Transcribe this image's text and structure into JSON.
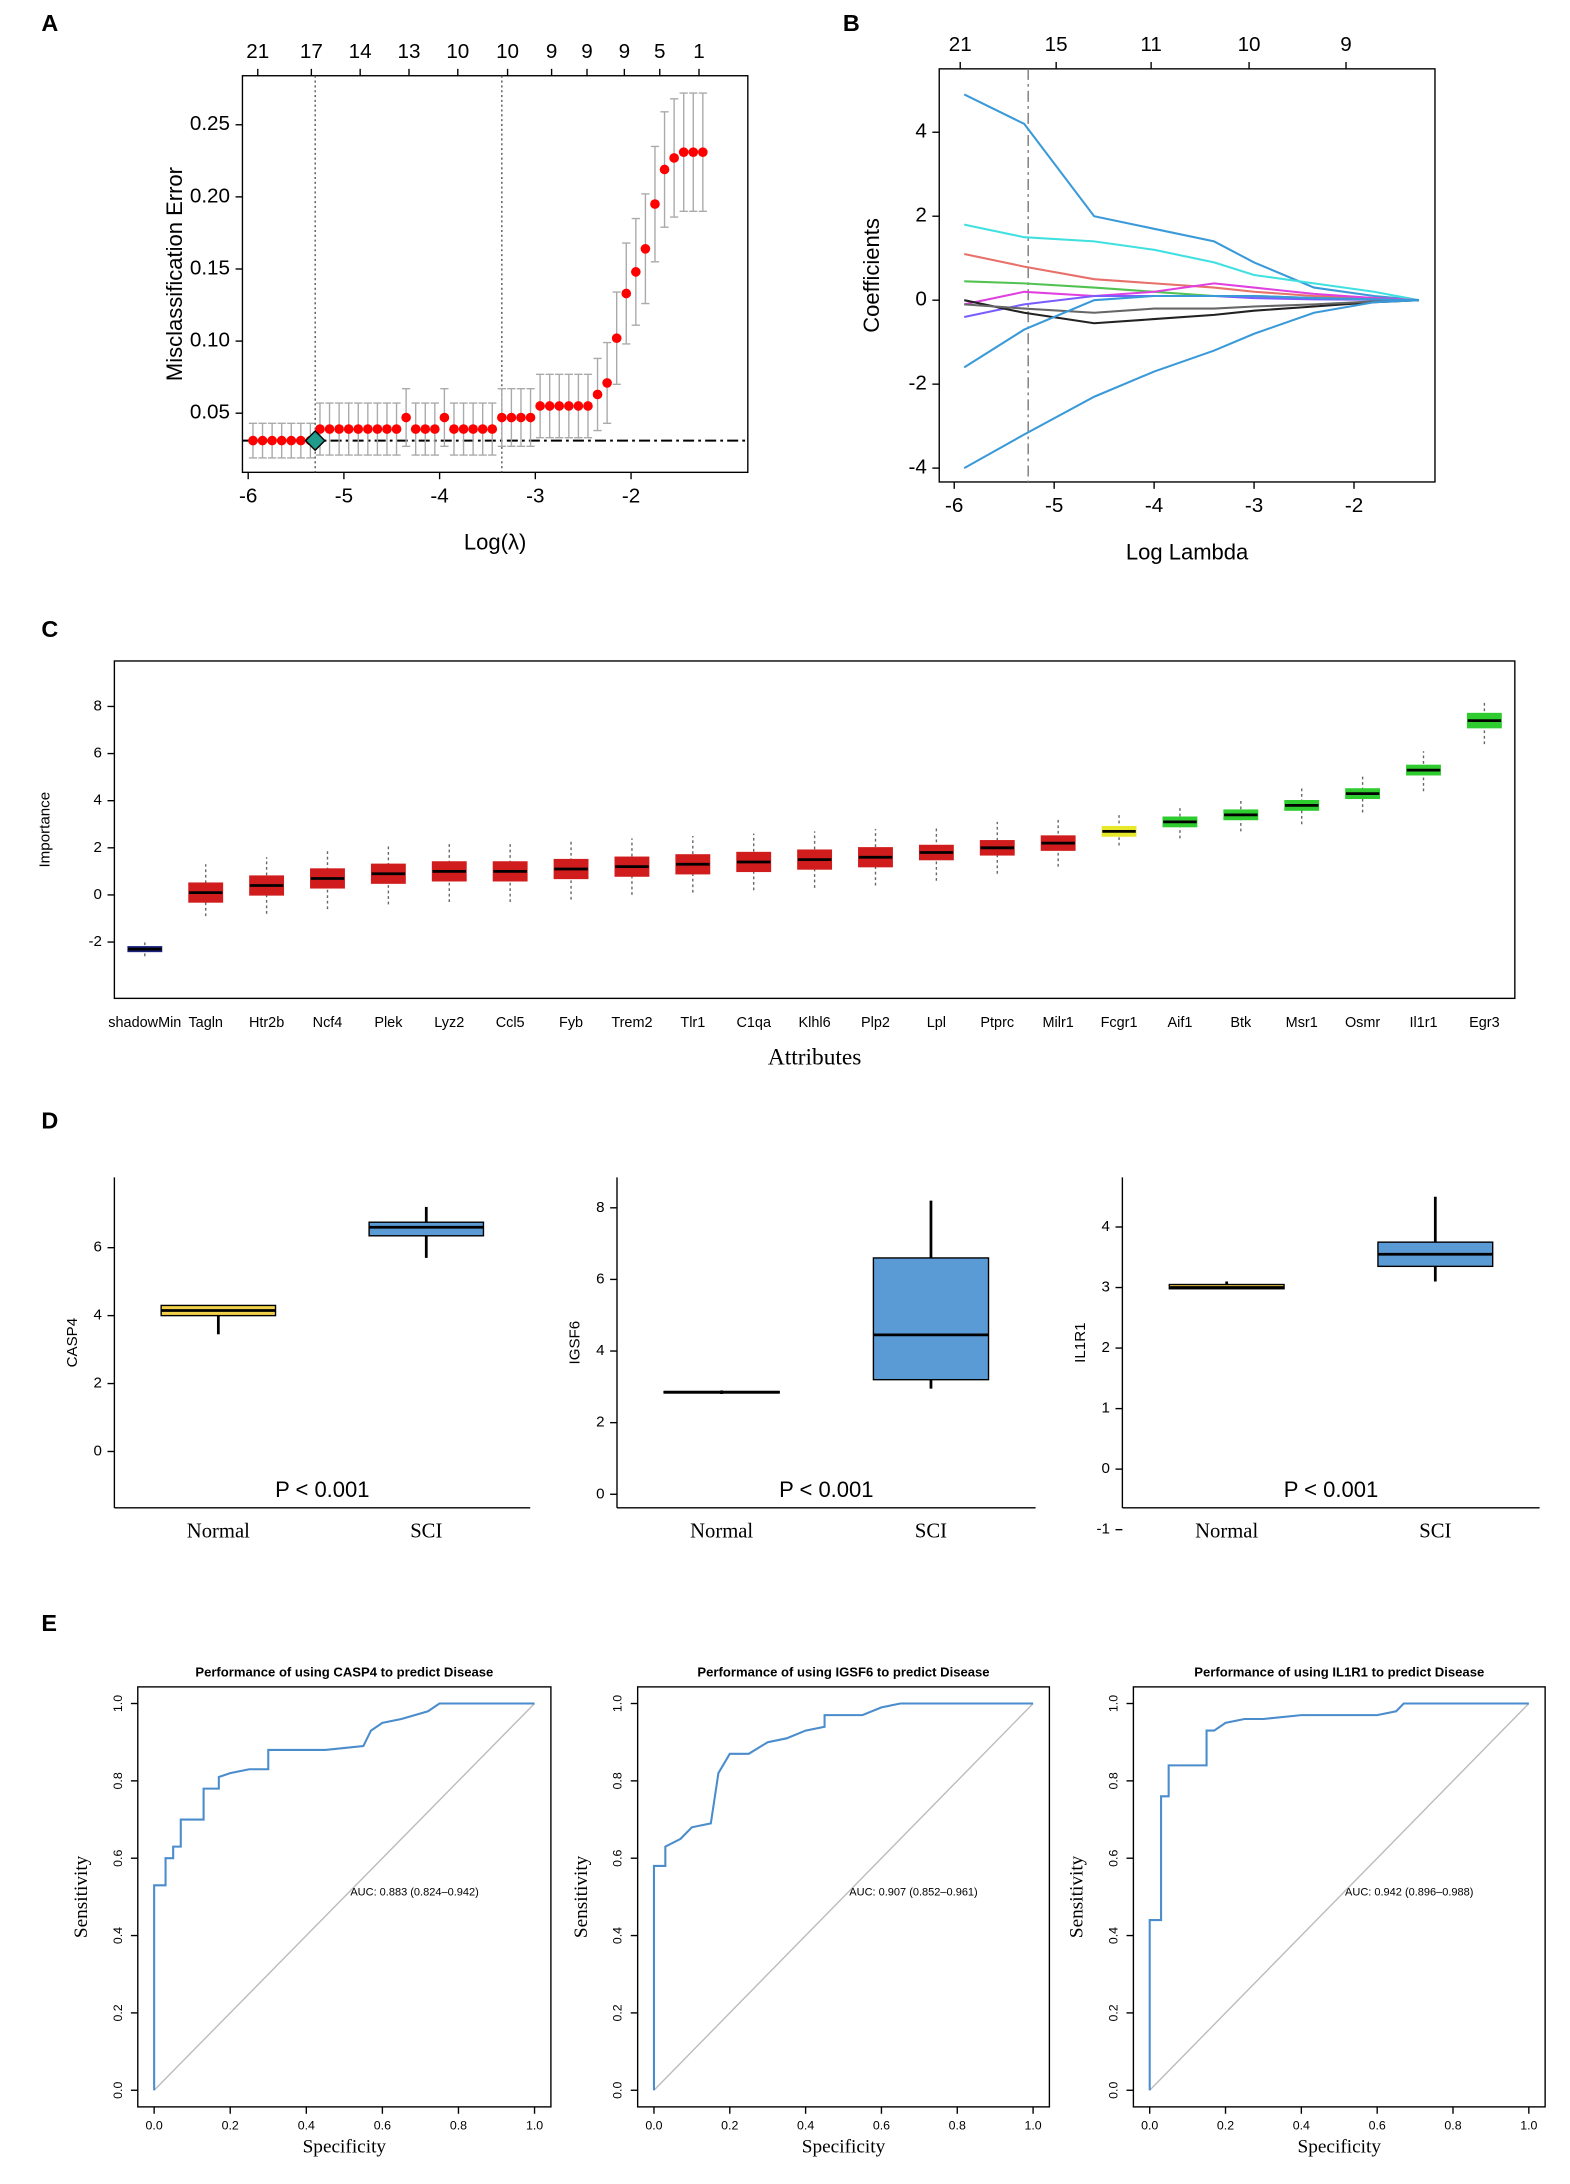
{
  "chart_data": [
    {
      "type": "scatter",
      "panel": "A",
      "xlabel": "Log(λ)",
      "ylabel": "Misclassification Error",
      "x": [
        -5.95,
        -5.85,
        -5.75,
        -5.65,
        -5.55,
        -5.45,
        -5.35,
        -5.25,
        -5.15,
        -5.05,
        -4.95,
        -4.85,
        -4.75,
        -4.65,
        -4.55,
        -4.45,
        -4.35,
        -4.25,
        -4.15,
        -4.05,
        -3.95,
        -3.85,
        -3.75,
        -3.65,
        -3.55,
        -3.45,
        -3.35,
        -3.25,
        -3.15,
        -3.05,
        -2.95,
        -2.85,
        -2.75,
        -2.65,
        -2.55,
        -2.45,
        -2.35,
        -2.25,
        -2.15,
        -2.05,
        -1.95,
        -1.85,
        -1.75,
        -1.65,
        -1.55,
        -1.45,
        -1.35,
        -1.25
      ],
      "values": [
        0.031,
        0.031,
        0.031,
        0.031,
        0.031,
        0.031,
        0.031,
        0.039,
        0.039,
        0.039,
        0.039,
        0.039,
        0.039,
        0.039,
        0.039,
        0.039,
        0.047,
        0.039,
        0.039,
        0.039,
        0.047,
        0.039,
        0.039,
        0.039,
        0.039,
        0.039,
        0.047,
        0.047,
        0.047,
        0.047,
        0.055,
        0.055,
        0.055,
        0.055,
        0.055,
        0.055,
        0.063,
        0.071,
        0.102,
        0.133,
        0.148,
        0.164,
        0.195,
        0.219,
        0.227,
        0.231,
        0.231,
        0.231
      ],
      "errors": [
        0.012,
        0.012,
        0.012,
        0.012,
        0.012,
        0.012,
        0.012,
        0.018,
        0.018,
        0.018,
        0.018,
        0.018,
        0.018,
        0.018,
        0.018,
        0.018,
        0.02,
        0.018,
        0.018,
        0.018,
        0.02,
        0.018,
        0.018,
        0.018,
        0.018,
        0.018,
        0.02,
        0.02,
        0.02,
        0.02,
        0.022,
        0.022,
        0.022,
        0.022,
        0.022,
        0.022,
        0.025,
        0.028,
        0.032,
        0.035,
        0.037,
        0.038,
        0.04,
        0.04,
        0.041,
        0.041,
        0.041,
        0.041
      ],
      "color": "#ff0000",
      "error_color": "#aaaaaa",
      "highlight": {
        "x": -5.3,
        "y": 0.031,
        "color": "#1f9c8c"
      },
      "vlines": [
        -5.3,
        -3.35
      ],
      "hline": 0.031,
      "xlim": [
        -6.06,
        -0.78
      ],
      "ylim": [
        0.009,
        0.284
      ],
      "xticks": [
        -6,
        -5,
        -4,
        -3,
        -2
      ],
      "yticks": [
        0.05,
        {
          "value": 0.1,
          "label": "0.10"
        },
        0.15,
        {
          "value": 0.2,
          "label": "0.20"
        },
        0.25
      ],
      "x2ticks": [
        {
          "value": -5.9,
          "label": "21"
        },
        {
          "value": -5.34,
          "label": "17"
        },
        {
          "value": -4.83,
          "label": "14"
        },
        {
          "value": -4.32,
          "label": "13"
        },
        {
          "value": -3.81,
          "label": "10"
        },
        {
          "value": -3.29,
          "label": "10"
        },
        {
          "value": -2.83,
          "label": "9"
        },
        {
          "value": -2.46,
          "label": "9"
        },
        {
          "value": -2.07,
          "label": "9"
        },
        {
          "value": -1.7,
          "label": "5"
        },
        {
          "value": -1.29,
          "label": "1"
        }
      ]
    },
    {
      "type": "line",
      "panel": "B",
      "xlabel": "Log Lambda",
      "ylabel": "Coefficients",
      "x": [
        -5.9,
        -5.3,
        -4.6,
        -4.0,
        -3.4,
        -3.0,
        -2.4,
        -1.8,
        -1.35
      ],
      "series": [
        {
          "color": "#3a9ad9",
          "values": [
            4.9,
            4.2,
            2.0,
            1.7,
            1.4,
            0.9,
            0.3,
            0.1,
            0
          ]
        },
        {
          "color": "#40e0e0",
          "values": [
            1.8,
            1.5,
            1.4,
            1.2,
            0.9,
            0.6,
            0.4,
            0.2,
            0
          ]
        },
        {
          "color": "#e8706a",
          "values": [
            1.1,
            0.8,
            0.5,
            0.4,
            0.3,
            0.2,
            0.1,
            0.05,
            0
          ]
        },
        {
          "color": "#52c252",
          "values": [
            0.45,
            0.4,
            0.3,
            0.2,
            0.1,
            0.1,
            0.05,
            0.02,
            0
          ]
        },
        {
          "color": "#e040e0",
          "values": [
            -0.1,
            0.2,
            0.1,
            0.2,
            0.4,
            0.3,
            0.15,
            0.05,
            0
          ]
        },
        {
          "color": "#7a5cff",
          "values": [
            -0.4,
            -0.1,
            0.1,
            0.1,
            0.1,
            0.05,
            0.02,
            0.01,
            0
          ]
        },
        {
          "color": "#222222",
          "values": [
            0,
            -0.3,
            -0.55,
            -0.45,
            -0.35,
            -0.25,
            -0.15,
            -0.05,
            0
          ]
        },
        {
          "color": "#666666",
          "values": [
            -0.1,
            -0.2,
            -0.3,
            -0.2,
            -0.2,
            -0.15,
            -0.1,
            -0.03,
            0
          ]
        },
        {
          "color": "#3a9ad9",
          "values": [
            -1.6,
            -0.7,
            0,
            0.1,
            0.1,
            0.1,
            0.05,
            0.02,
            0
          ]
        },
        {
          "color": "#3a9ad9",
          "values": [
            -4.0,
            -3.2,
            -2.3,
            -1.7,
            -1.2,
            -0.8,
            -0.3,
            -0.05,
            0
          ]
        }
      ],
      "vlines": [
        -5.26
      ],
      "xlim": [
        -6.15,
        -1.19
      ],
      "ylim": [
        -4.33,
        5.51
      ],
      "xticks": [
        -6,
        -5,
        -4,
        -3,
        -2
      ],
      "yticks": [
        -4,
        -2,
        0,
        2,
        4
      ],
      "x2ticks": [
        {
          "value": -5.94,
          "label": "21"
        },
        {
          "value": -4.98,
          "label": "15"
        },
        {
          "value": -4.03,
          "label": "11"
        },
        {
          "value": -3.05,
          "label": "10"
        },
        {
          "value": -2.08,
          "label": "9"
        }
      ]
    },
    {
      "type": "box",
      "panel": "C",
      "xlabel": "Attributes",
      "ylabel": "Importance",
      "categories": [
        "shadowMin",
        "Tagln",
        "Htr2b",
        "Ncf4",
        "Plek",
        "Lyz2",
        "Ccl5",
        "Fyb",
        "Trem2",
        "Tlr1",
        "C1qa",
        "Klhl6",
        "Plp2",
        "Lpl",
        "Ptprc",
        "Milr1",
        "Fcgr1",
        "Aif1",
        "Btk",
        "Msr1",
        "Osmr",
        "Il1r1",
        "Egr3"
      ],
      "min": [
        -2.6,
        -0.9,
        -0.8,
        -0.6,
        -0.4,
        -0.3,
        -0.3,
        -0.2,
        0,
        0.1,
        0.2,
        0.3,
        0.4,
        0.6,
        0.9,
        1.2,
        2.1,
        2.4,
        2.7,
        3.0,
        3.5,
        4.4,
        6.4
      ],
      "q1": [
        -2.4,
        -0.3,
        0,
        0.3,
        0.5,
        0.6,
        0.6,
        0.7,
        0.8,
        0.9,
        1.0,
        1.1,
        1.2,
        1.5,
        1.7,
        1.9,
        2.5,
        2.9,
        3.2,
        3.6,
        4.1,
        5.1,
        7.1
      ],
      "median": [
        -2.3,
        0.1,
        0.4,
        0.7,
        0.9,
        1.0,
        1.0,
        1.1,
        1.2,
        1.3,
        1.4,
        1.5,
        1.6,
        1.8,
        2.0,
        2.2,
        2.7,
        3.1,
        3.4,
        3.8,
        4.3,
        5.3,
        7.4
      ],
      "q3": [
        -2.2,
        0.5,
        0.8,
        1.1,
        1.3,
        1.4,
        1.4,
        1.5,
        1.6,
        1.7,
        1.8,
        1.9,
        2.0,
        2.1,
        2.3,
        2.5,
        2.9,
        3.3,
        3.6,
        4.0,
        4.5,
        5.5,
        7.7
      ],
      "max": [
        -1.9,
        1.3,
        1.6,
        1.9,
        2.1,
        2.2,
        2.2,
        2.3,
        2.4,
        2.5,
        2.6,
        2.7,
        2.8,
        2.9,
        3.1,
        3.3,
        3.4,
        3.8,
        4.1,
        4.6,
        5.1,
        6.1,
        8.2
      ],
      "colors": [
        "#1a237e",
        "#d01c1c",
        "#d01c1c",
        "#d01c1c",
        "#d01c1c",
        "#d01c1c",
        "#d01c1c",
        "#d01c1c",
        "#d01c1c",
        "#d01c1c",
        "#d01c1c",
        "#d01c1c",
        "#d01c1c",
        "#d01c1c",
        "#d01c1c",
        "#d01c1c",
        "#e8e82a",
        "#2ecc2e",
        "#2ecc2e",
        "#2ecc2e",
        "#2ecc2e",
        "#2ecc2e",
        "#2ecc2e"
      ],
      "ylim": [
        -4.39,
        9.93
      ],
      "yticks": [
        -2,
        0,
        2,
        4,
        6,
        8
      ]
    },
    {
      "type": "box",
      "panel": "D",
      "ylabel": "CASP4",
      "annotation": "P < 0.001",
      "categories": [
        "Normal",
        "SCI"
      ],
      "min": [
        3.45,
        5.7
      ],
      "q1": [
        4.0,
        6.35
      ],
      "median": [
        4.15,
        6.6
      ],
      "q3": [
        4.3,
        6.75
      ],
      "max": [
        4.3,
        7.2
      ],
      "colors": [
        "#f2d14a",
        "#5b9bd5"
      ],
      "ylim": [
        -1.66,
        8.07
      ],
      "yticks": [
        0,
        2,
        4,
        6
      ]
    },
    {
      "type": "box",
      "ylabel": "IGSF6",
      "annotation": "P < 0.001",
      "categories": [
        "Normal",
        "SCI"
      ],
      "min": [
        2.8,
        2.95
      ],
      "q1": [
        2.83,
        3.2
      ],
      "median": [
        2.85,
        4.45
      ],
      "q3": [
        2.87,
        6.6
      ],
      "max": [
        2.9,
        8.2
      ],
      "colors": [
        "#f2d14a",
        "#5b9bd5"
      ],
      "ylim": [
        -0.38,
        8.85
      ],
      "yticks": [
        0,
        2,
        4,
        6,
        8
      ]
    },
    {
      "type": "box",
      "ylabel": "IL1R1",
      "annotation": "P < 0.001",
      "categories": [
        "Normal",
        "SCI"
      ],
      "min": [
        2.98,
        3.1
      ],
      "q1": [
        2.98,
        3.35
      ],
      "median": [
        3.0,
        3.55
      ],
      "q3": [
        3.05,
        3.75
      ],
      "max": [
        3.1,
        4.5
      ],
      "colors": [
        "#f2d14a",
        "#5b9bd5"
      ],
      "ylim": [
        -0.64,
        4.82
      ],
      "yticks": [
        -1,
        0,
        1,
        2,
        3,
        4
      ]
    },
    {
      "type": "line",
      "panel": "E",
      "title": "Performance of using CASP4 to predict Disease",
      "xlabel": "Specificity",
      "ylabel": "Sensitivity",
      "annotation": "AUC: 0.883 (0.824–0.942)",
      "color": "#4a8ccc",
      "diagonal": true,
      "x": [
        0,
        0,
        0.03,
        0.03,
        0.05,
        0.05,
        0.07,
        0.07,
        0.13,
        0.13,
        0.17,
        0.17,
        0.2,
        0.25,
        0.3,
        0.3,
        0.45,
        0.55,
        0.57,
        0.6,
        0.65,
        0.72,
        0.75,
        1
      ],
      "values": [
        0,
        0.53,
        0.53,
        0.6,
        0.6,
        0.63,
        0.63,
        0.7,
        0.7,
        0.78,
        0.78,
        0.81,
        0.82,
        0.83,
        0.83,
        0.88,
        0.88,
        0.89,
        0.93,
        0.95,
        0.96,
        0.98,
        1,
        1
      ],
      "xlim": [
        -0.043,
        1.043
      ],
      "ylim": [
        -0.043,
        1.043
      ],
      "xticks": [
        {
          "value": 0,
          "label": "0.0"
        },
        0.2,
        0.4,
        0.6,
        0.8,
        {
          "value": 1,
          "label": "1.0"
        }
      ],
      "yticks": [
        {
          "value": 0,
          "label": "0.0"
        },
        0.2,
        0.4,
        0.6,
        0.8,
        {
          "value": 1,
          "label": "1.0"
        }
      ]
    },
    {
      "type": "line",
      "title": "Performance of using IGSF6 to predict Disease",
      "xlabel": "Specificity",
      "ylabel": "Sensitivity",
      "annotation": "AUC: 0.907 (0.852–0.961)",
      "color": "#4a8ccc",
      "diagonal": true,
      "x": [
        0,
        0,
        0.03,
        0.03,
        0.07,
        0.1,
        0.15,
        0.17,
        0.2,
        0.25,
        0.3,
        0.35,
        0.4,
        0.45,
        0.45,
        0.55,
        0.6,
        0.65,
        1
      ],
      "values": [
        0,
        0.58,
        0.58,
        0.63,
        0.65,
        0.68,
        0.69,
        0.82,
        0.87,
        0.87,
        0.9,
        0.91,
        0.93,
        0.94,
        0.97,
        0.97,
        0.99,
        1,
        1
      ],
      "xlim": [
        -0.043,
        1.043
      ],
      "ylim": [
        -0.043,
        1.043
      ],
      "xticks": [
        {
          "value": 0,
          "label": "0.0"
        },
        0.2,
        0.4,
        0.6,
        0.8,
        {
          "value": 1,
          "label": "1.0"
        }
      ],
      "yticks": [
        {
          "value": 0,
          "label": "0.0"
        },
        0.2,
        0.4,
        0.6,
        0.8,
        {
          "value": 1,
          "label": "1.0"
        }
      ]
    },
    {
      "type": "line",
      "title": "Performance of using IL1R1 to predict Disease",
      "xlabel": "Specificity",
      "ylabel": "Sensitivity",
      "annotation": "AUC: 0.942 (0.896–0.988)",
      "color": "#4a8ccc",
      "diagonal": true,
      "x": [
        0,
        0,
        0.03,
        0.03,
        0.05,
        0.05,
        0.15,
        0.15,
        0.17,
        0.2,
        0.25,
        0.3,
        0.4,
        0.6,
        0.65,
        0.67,
        1
      ],
      "values": [
        0,
        0.44,
        0.44,
        0.76,
        0.76,
        0.84,
        0.84,
        0.93,
        0.93,
        0.95,
        0.96,
        0.96,
        0.97,
        0.97,
        0.98,
        1,
        1
      ],
      "xlim": [
        -0.043,
        1.043
      ],
      "ylim": [
        -0.043,
        1.043
      ],
      "xticks": [
        {
          "value": 0,
          "label": "0.0"
        },
        0.2,
        0.4,
        0.6,
        0.8,
        {
          "value": 1,
          "label": "1.0"
        }
      ],
      "yticks": [
        {
          "value": 0,
          "label": "0.0"
        },
        0.2,
        0.4,
        0.6,
        0.8,
        {
          "value": 1,
          "label": "1.0"
        }
      ]
    }
  ]
}
